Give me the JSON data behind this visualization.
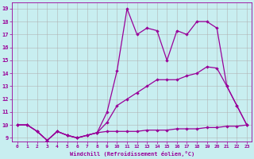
{
  "xlabel": "Windchill (Refroidissement éolien,°C)",
  "bg_color": "#c8eef0",
  "line_color": "#990099",
  "grid_color": "#b0b0b0",
  "xlim_min": -0.5,
  "xlim_max": 23.5,
  "ylim_min": 8.7,
  "ylim_max": 19.5,
  "xticks": [
    0,
    1,
    2,
    3,
    4,
    5,
    6,
    7,
    8,
    9,
    10,
    11,
    12,
    13,
    14,
    15,
    16,
    17,
    18,
    19,
    20,
    21,
    22,
    23
  ],
  "yticks": [
    9,
    10,
    11,
    12,
    13,
    14,
    15,
    16,
    17,
    18,
    19
  ],
  "line_bottom_x": [
    0,
    1,
    2,
    3,
    4,
    5,
    6,
    7,
    8,
    9,
    10,
    11,
    12,
    13,
    14,
    15,
    16,
    17,
    18,
    19,
    20,
    21,
    22,
    23
  ],
  "line_bottom_y": [
    10.0,
    10.0,
    9.5,
    8.8,
    9.5,
    9.2,
    9.0,
    9.2,
    9.4,
    9.5,
    9.5,
    9.5,
    9.5,
    9.6,
    9.6,
    9.6,
    9.7,
    9.7,
    9.7,
    9.8,
    9.8,
    9.9,
    9.9,
    10.0
  ],
  "line_mid_x": [
    0,
    1,
    2,
    3,
    4,
    5,
    6,
    7,
    8,
    9,
    10,
    11,
    12,
    13,
    14,
    15,
    16,
    17,
    18,
    19,
    20,
    21,
    22,
    23
  ],
  "line_mid_y": [
    10.0,
    10.0,
    9.5,
    8.8,
    9.5,
    9.2,
    9.0,
    9.2,
    9.4,
    10.2,
    11.5,
    12.0,
    12.5,
    13.0,
    13.5,
    13.5,
    13.5,
    13.8,
    14.0,
    14.5,
    14.4,
    13.0,
    11.5,
    10.0
  ],
  "line_top_x": [
    0,
    1,
    2,
    3,
    4,
    5,
    6,
    7,
    8,
    9,
    10,
    11,
    12,
    13,
    14,
    15,
    16,
    17,
    18,
    19,
    20,
    21,
    22,
    23
  ],
  "line_top_y": [
    10.0,
    10.0,
    9.5,
    8.8,
    9.5,
    9.2,
    9.0,
    9.2,
    9.4,
    11.0,
    14.2,
    19.0,
    17.0,
    17.5,
    17.3,
    15.0,
    17.3,
    17.0,
    18.0,
    18.0,
    17.5,
    13.0,
    11.5,
    10.0
  ]
}
